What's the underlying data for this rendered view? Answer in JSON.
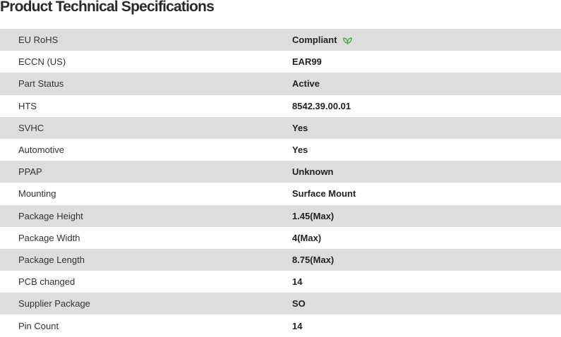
{
  "title": "Product Technical Specifications",
  "colors": {
    "row_alt": "#dddddd",
    "rohs_icon": "#3aa845"
  },
  "specs": [
    {
      "label": "EU RoHS",
      "value": "Compliant",
      "icon": "rohs-leaf-icon"
    },
    {
      "label": "ECCN (US)",
      "value": "EAR99"
    },
    {
      "label": "Part Status",
      "value": "Active"
    },
    {
      "label": "HTS",
      "value": "8542.39.00.01"
    },
    {
      "label": "SVHC",
      "value": "Yes"
    },
    {
      "label": "Automotive",
      "value": "Yes"
    },
    {
      "label": "PPAP",
      "value": "Unknown"
    },
    {
      "label": "Mounting",
      "value": "Surface Mount"
    },
    {
      "label": "Package Height",
      "value": "1.45(Max)"
    },
    {
      "label": "Package Width",
      "value": "4(Max)"
    },
    {
      "label": "Package Length",
      "value": "8.75(Max)"
    },
    {
      "label": "PCB changed",
      "value": "14"
    },
    {
      "label": "Supplier Package",
      "value": "SO"
    },
    {
      "label": "Pin Count",
      "value": "14"
    }
  ]
}
